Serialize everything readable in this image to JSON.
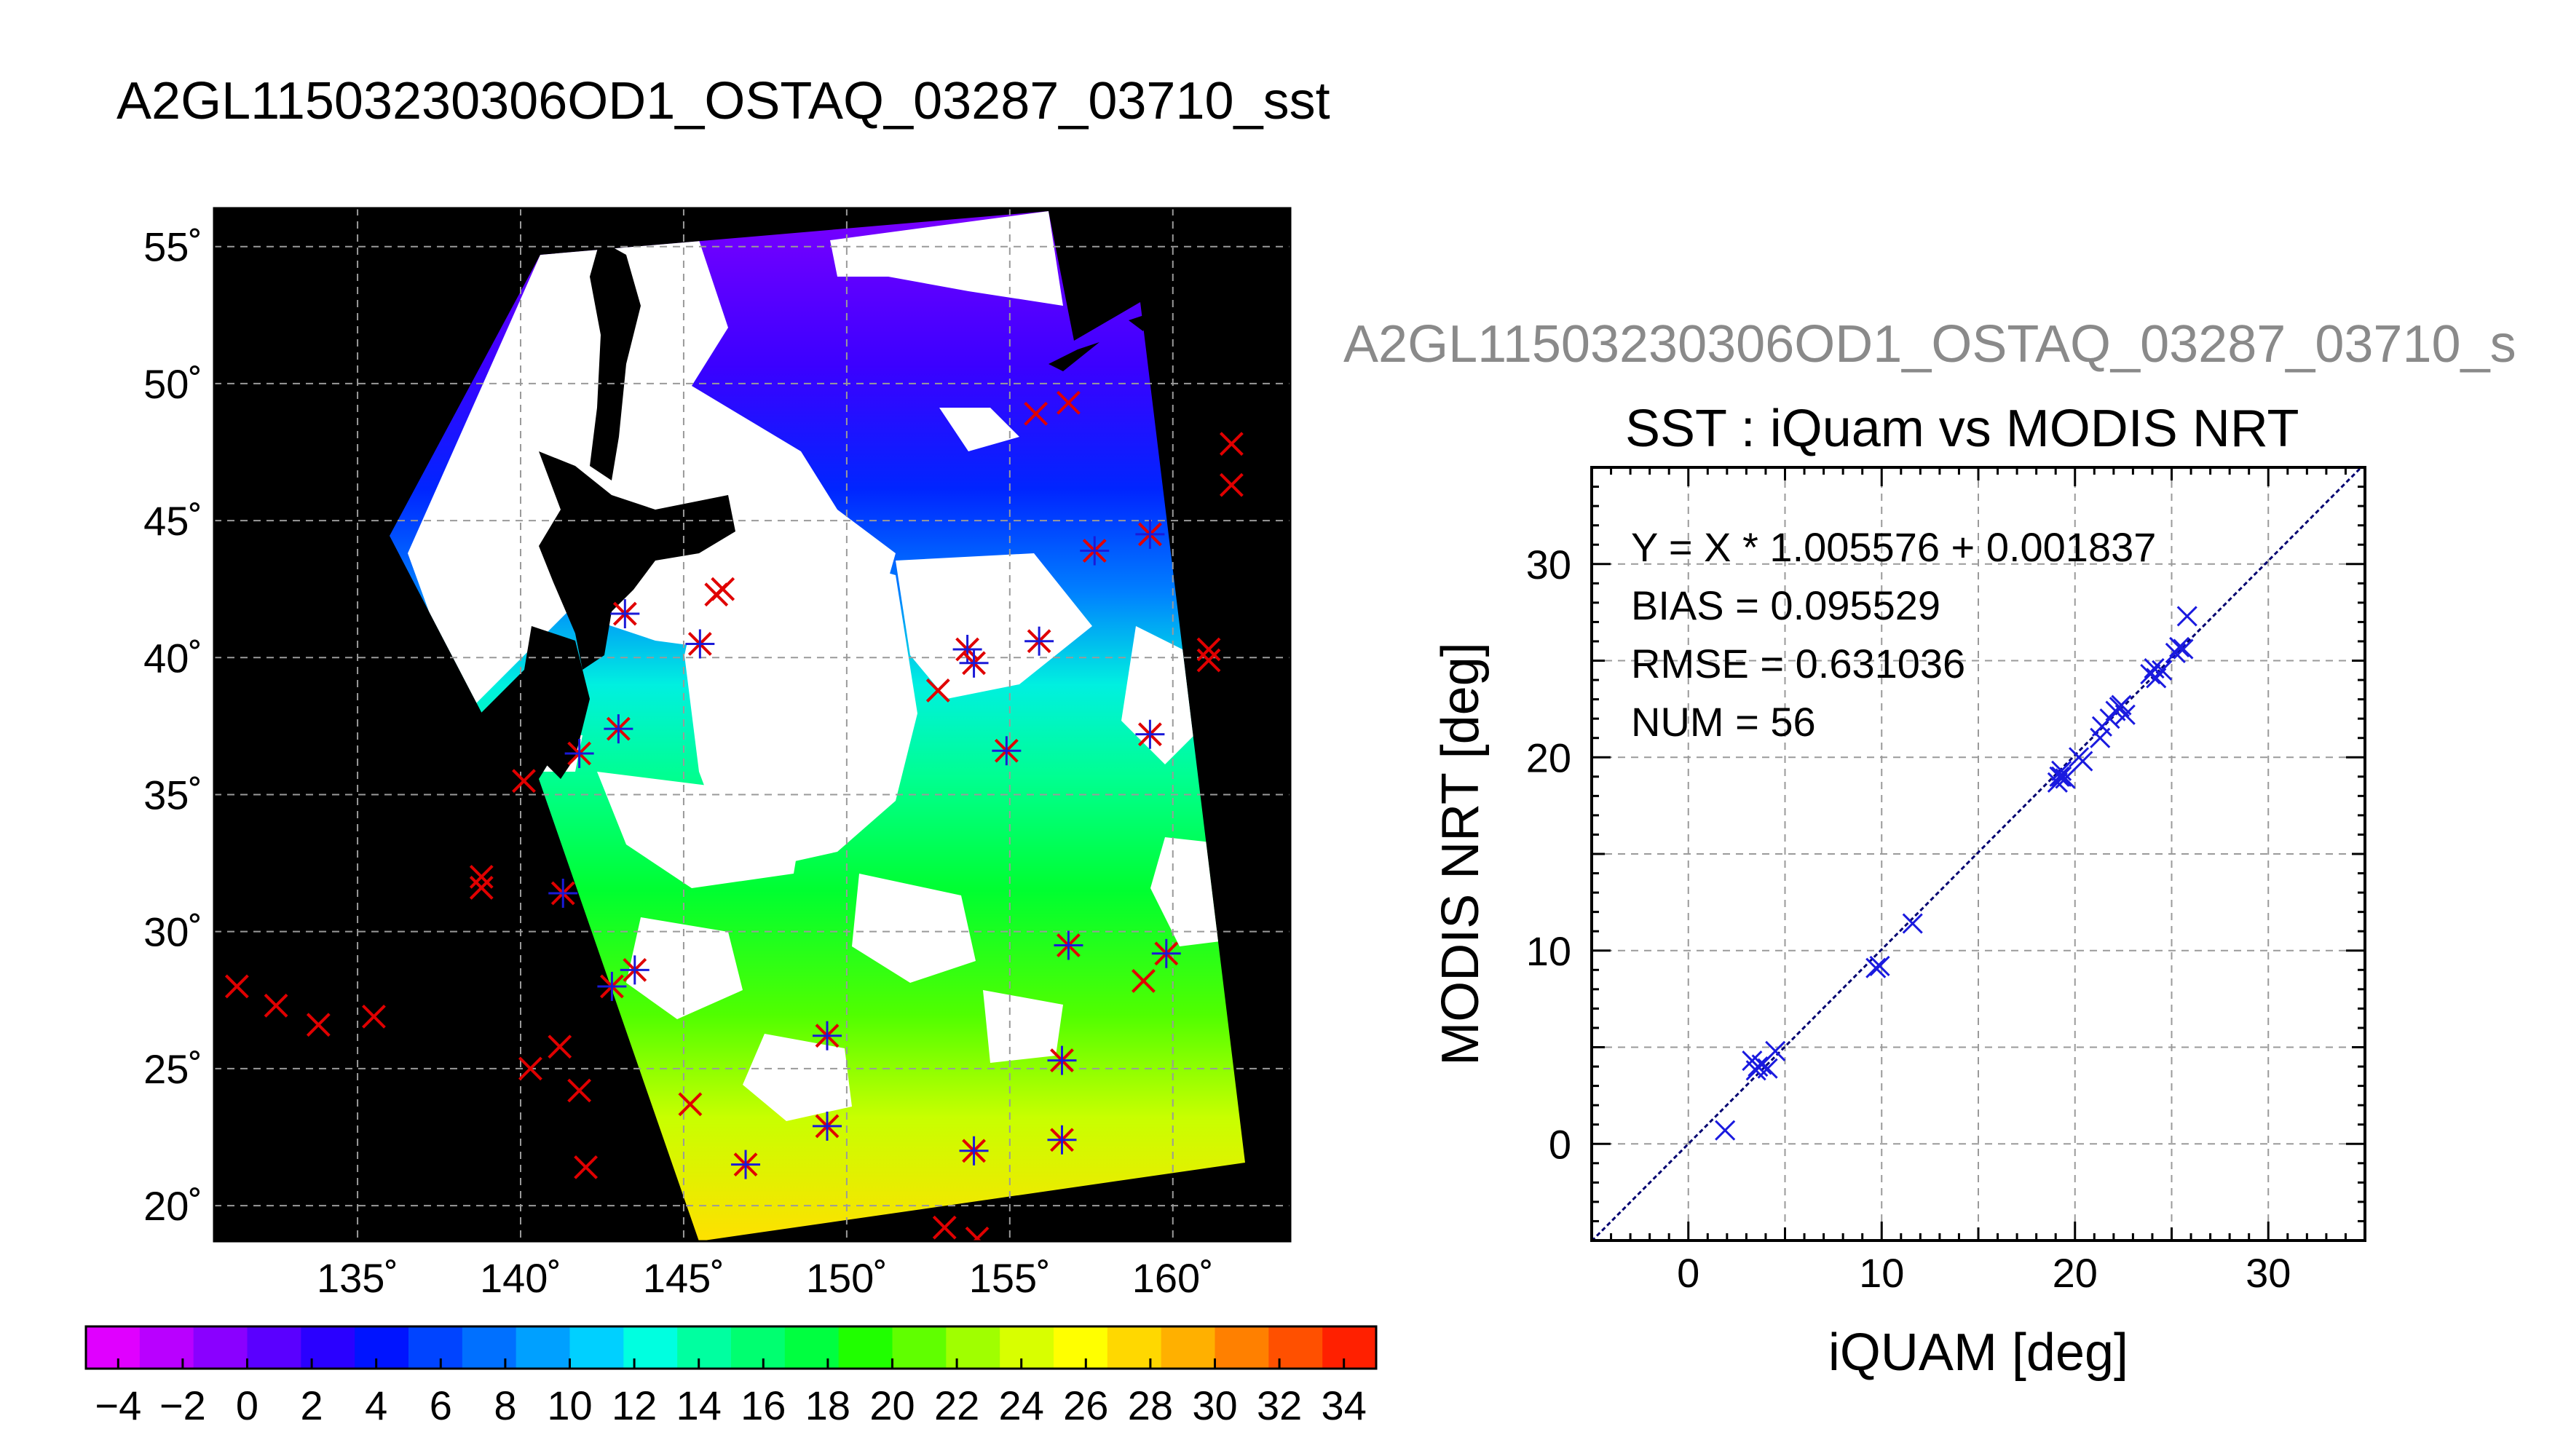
{
  "title": "A2GL11503230306OD1_OSTAQ_03287_03710_sst",
  "secondary_title": "A2GL11503230306OD1_OSTAQ_03287_03710_s",
  "colors": {
    "land": "#000000",
    "cloud": "#ffffff",
    "grid": "#9a9a9a",
    "marker_red": "#e00000",
    "marker_blue": "#1a1ad8",
    "scatter": "#1a1adf",
    "fit_line": "#000070"
  },
  "map": {
    "lon_ticks": [
      "135˚",
      "140˚",
      "145˚",
      "150˚",
      "155˚",
      "160˚"
    ],
    "lat_ticks": [
      "55˚",
      "50˚",
      "45˚",
      "40˚",
      "35˚",
      "30˚",
      "25˚",
      "20˚"
    ]
  },
  "colorbar": {
    "labels": [
      "−4",
      "−2",
      "0",
      "2",
      "4",
      "6",
      "8",
      "10",
      "12",
      "14",
      "16",
      "18",
      "20",
      "22",
      "24",
      "26",
      "28",
      "30",
      "32",
      "34"
    ],
    "colors": [
      "#e000ff",
      "#b900ff",
      "#8a00ff",
      "#5a00ff",
      "#2a00ff",
      "#0014ff",
      "#0044ff",
      "#0070ff",
      "#00a0ff",
      "#00d0ff",
      "#00ffe0",
      "#00ffa0",
      "#00ff70",
      "#00ff40",
      "#20ff00",
      "#60ff00",
      "#a0ff00",
      "#d8ff00",
      "#ffff00",
      "#ffd800",
      "#ffb000",
      "#ff8000",
      "#ff5000",
      "#ff2000"
    ]
  },
  "stats": {
    "equation": "Y = X * 1.005576 + 0.001837",
    "bias": "BIAS = 0.095529",
    "rmse": "RMSE = 0.631036",
    "num": "NUM = 56"
  },
  "chart_data": [
    {
      "type": "map",
      "title": "A2GL11503230306OD1_OSTAQ_03287_03710_sst",
      "lon_range": [
        130.6,
        163.6
      ],
      "lat_range": [
        18.7,
        56.4
      ],
      "grid": true,
      "stations_outside_swath": [
        {
          "lon": 131.3,
          "lat": 28.0
        },
        {
          "lon": 132.5,
          "lat": 27.3
        },
        {
          "lon": 133.8,
          "lat": 26.6
        },
        {
          "lon": 135.5,
          "lat": 26.9
        },
        {
          "lon": 138.8,
          "lat": 32.0
        },
        {
          "lon": 138.8,
          "lat": 31.6
        },
        {
          "lon": 140.3,
          "lat": 25.0
        },
        {
          "lon": 141.2,
          "lat": 25.8
        },
        {
          "lon": 141.8,
          "lat": 24.2
        },
        {
          "lon": 142.0,
          "lat": 21.4
        },
        {
          "lon": 140.1,
          "lat": 35.5
        },
        {
          "lon": 146.2,
          "lat": 42.5
        },
        {
          "lon": 146.0,
          "lat": 42.3
        },
        {
          "lon": 145.2,
          "lat": 23.7
        },
        {
          "lon": 152.8,
          "lat": 38.8
        },
        {
          "lon": 153.0,
          "lat": 19.2
        },
        {
          "lon": 154.0,
          "lat": 18.8
        },
        {
          "lon": 155.8,
          "lat": 48.9
        },
        {
          "lon": 156.8,
          "lat": 49.3
        },
        {
          "lon": 161.8,
          "lat": 47.8
        },
        {
          "lon": 161.8,
          "lat": 46.3
        },
        {
          "lon": 161.1,
          "lat": 40.3
        },
        {
          "lon": 161.1,
          "lat": 39.9
        },
        {
          "lon": 159.1,
          "lat": 28.2
        }
      ],
      "stations_matched": [
        {
          "lon": 141.3,
          "lat": 31.4
        },
        {
          "lon": 143.5,
          "lat": 28.6
        },
        {
          "lon": 142.8,
          "lat": 28.0
        },
        {
          "lon": 146.9,
          "lat": 21.5
        },
        {
          "lon": 149.4,
          "lat": 22.9
        },
        {
          "lon": 149.4,
          "lat": 26.2
        },
        {
          "lon": 153.9,
          "lat": 22.0
        },
        {
          "lon": 156.6,
          "lat": 22.4
        },
        {
          "lon": 156.6,
          "lat": 25.3
        },
        {
          "lon": 156.8,
          "lat": 29.5
        },
        {
          "lon": 159.8,
          "lat": 29.2
        },
        {
          "lon": 141.8,
          "lat": 36.5
        },
        {
          "lon": 143.0,
          "lat": 37.4
        },
        {
          "lon": 143.2,
          "lat": 41.6
        },
        {
          "lon": 145.5,
          "lat": 40.5
        },
        {
          "lon": 153.7,
          "lat": 40.3
        },
        {
          "lon": 153.9,
          "lat": 39.8
        },
        {
          "lon": 154.9,
          "lat": 36.6
        },
        {
          "lon": 155.9,
          "lat": 40.6
        },
        {
          "lon": 157.6,
          "lat": 43.9
        },
        {
          "lon": 159.3,
          "lat": 44.5
        },
        {
          "lon": 159.3,
          "lat": 37.2
        }
      ]
    },
    {
      "type": "scatter",
      "title": "SST : iQuam vs MODIS NRT",
      "xlabel": "iQUAM [deg]",
      "ylabel": "MODIS NRT [deg]",
      "xlim": [
        -5,
        35
      ],
      "ylim": [
        -5,
        35
      ],
      "xticks": [
        0,
        10,
        20,
        30
      ],
      "yticks": [
        0,
        10,
        20,
        30
      ],
      "grid": true,
      "fit": {
        "slope": 1.005576,
        "intercept": 0.001837
      },
      "x": [
        1.9,
        3.3,
        3.6,
        3.5,
        3.8,
        4.1,
        4.5,
        9.7,
        9.9,
        11.6,
        19.1,
        19.2,
        19.3,
        19.5,
        19.3,
        20.2,
        20.4,
        21.3,
        21.4,
        21.8,
        22.1,
        22.3,
        22.6,
        22.4,
        23.9,
        24.1,
        24.5,
        24.2,
        25.2,
        25.4,
        25.6,
        25.8
      ],
      "y": [
        0.7,
        4.3,
        4.0,
        3.8,
        4.1,
        3.9,
        4.8,
        9.1,
        9.2,
        11.4,
        18.7,
        19.0,
        19.3,
        18.9,
        19.0,
        20.0,
        19.8,
        21.0,
        21.6,
        22.0,
        22.4,
        22.6,
        22.2,
        22.7,
        24.3,
        24.6,
        24.5,
        24.1,
        25.4,
        25.7,
        25.6,
        27.3
      ]
    }
  ]
}
